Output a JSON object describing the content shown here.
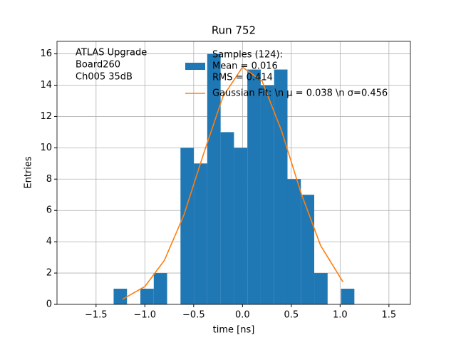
{
  "chart_data": {
    "type": "histogram",
    "title": "Run 752",
    "xlabel": "time [ns]",
    "ylabel": "Entries",
    "bins": [
      -1.32,
      -1.183,
      -1.046,
      -0.909,
      -0.772,
      -0.635,
      -0.498,
      -0.361,
      -0.224,
      -0.087,
      0.05,
      0.187,
      0.324,
      0.461,
      0.598,
      0.735,
      0.872,
      1.009,
      1.146
    ],
    "series": [
      {
        "name": [
          "Samples (124):",
          " Mean = 0.016",
          " RMS = 0.414"
        ],
        "color": "#1f77b4",
        "values": [
          1,
          0,
          1,
          2,
          0,
          10,
          9,
          16,
          11,
          10,
          15,
          14,
          15,
          8,
          7,
          2,
          0,
          1
        ]
      },
      {
        "name": [
          "Gaussian Fit: \\n μ = 0.038 \\n σ=0.456"
        ],
        "color": "#ff7f0e",
        "type": "line",
        "x": [
          -1.23,
          -1.0,
          -0.8,
          -0.6,
          -0.4,
          -0.2,
          0,
          0.2,
          0.4,
          0.6,
          0.8,
          1.03
        ],
        "values": [
          0.32,
          1.14,
          2.81,
          5.71,
          9.59,
          13.27,
          15.15,
          14.27,
          11.09,
          7.11,
          3.76,
          1.43
        ]
      }
    ],
    "annotation": [
      "ATLAS Upgrade",
      " Board260",
      " Ch005 35dB"
    ],
    "xlim": [
      -1.9,
      1.72
    ],
    "ylim": [
      0,
      16.8
    ],
    "xticks": [
      {
        "value": -1.5,
        "label": "−1.5"
      },
      {
        "value": -1.0,
        "label": "−1.0"
      },
      {
        "value": -0.5,
        "label": "−0.5"
      },
      {
        "value": 0,
        "label": "0.0"
      },
      {
        "value": 0.5,
        "label": "0.5"
      },
      {
        "value": 1.0,
        "label": "1.0"
      },
      {
        "value": 1.5,
        "label": "1.5"
      }
    ],
    "yticks": [
      0,
      2,
      4,
      6,
      8,
      10,
      12,
      14,
      16
    ],
    "grid": true,
    "legend": "upper center"
  }
}
